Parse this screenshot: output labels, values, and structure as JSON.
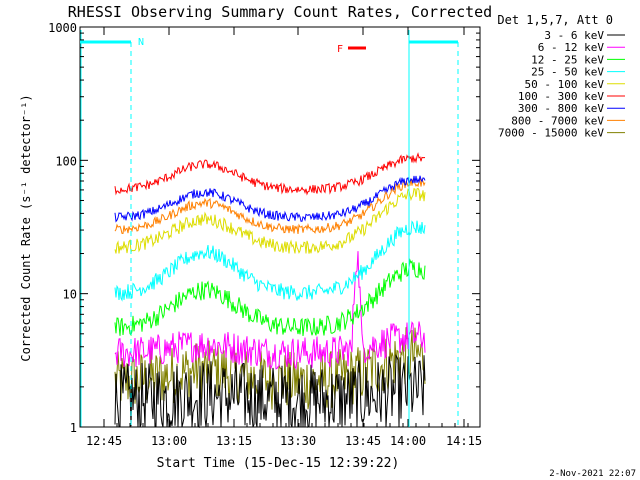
{
  "chart_data": {
    "type": "line",
    "title": "RHESSI Observing Summary Count Rates, Corrected",
    "xlabel": "Start Time (15-Dec-15 12:39:22)",
    "ylabel": "Corrected Count Rate (s⁻¹ detector⁻¹)",
    "y_scale": "log",
    "ylim": [
      1,
      1000
    ],
    "x_ticks": [
      "12:45",
      "13:00",
      "13:15",
      "13:30",
      "13:45",
      "14:00",
      "14:15"
    ],
    "y_ticks": [
      "1",
      "10",
      "100",
      "1000"
    ],
    "legend_title": "Det 1,5,7, Att 0",
    "legend_position": "right",
    "series": [
      {
        "name": "3 - 6 keV",
        "color": "#000000",
        "baseline": 1.6
      },
      {
        "name": "6 - 12 keV",
        "color": "#ff00ff",
        "baseline": 3.6
      },
      {
        "name": "12 - 25 keV",
        "color": "#00ff00",
        "baseline": 5.5
      },
      {
        "name": "25 - 50 keV",
        "color": "#00ffff",
        "baseline": 10
      },
      {
        "name": "50 - 100 keV",
        "color": "#dddd00",
        "baseline": 22
      },
      {
        "name": "100 - 300 keV",
        "color": "#ff0000",
        "baseline": 60
      },
      {
        "name": "300 - 800 keV",
        "color": "#0000ff",
        "baseline": 37
      },
      {
        "name": "800 - 7000 keV",
        "color": "#ff8000",
        "baseline": 30
      },
      {
        "name": "7000 - 15000 keV",
        "color": "#808000",
        "baseline": 2.2
      }
    ],
    "annotations": {
      "saa_label": "N",
      "flare_label": "F",
      "saa_color": "#00ffff",
      "flare_color": "#ff0000"
    },
    "footer_date": "2-Nov-2021 22:07"
  }
}
